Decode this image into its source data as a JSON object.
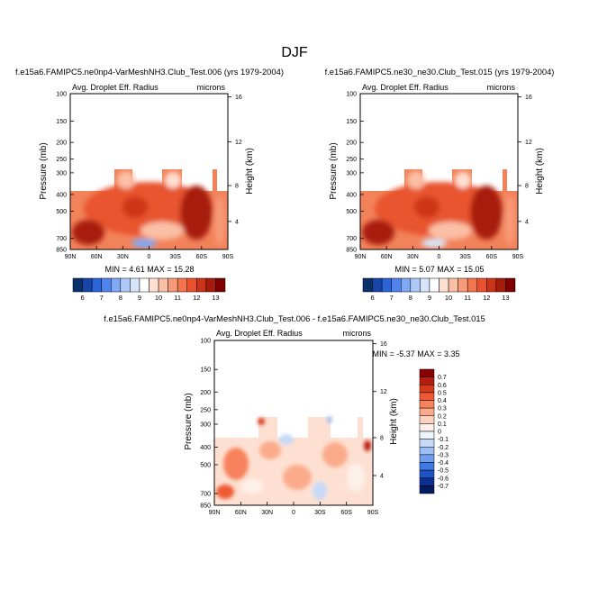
{
  "figure_title": "DJF",
  "chart_data": [
    {
      "type": "heatmap",
      "title": "f.e15a6.FAMIPC5.ne0np4-VarMeshNH3.Club_Test.006 (yrs 1979-2004)",
      "variable": "Avg. Droplet Eff. Radius",
      "units": "microns",
      "ylabel": "Pressure (mb)",
      "y2label": "Height (km)",
      "xticks": [
        "90N",
        "60N",
        "30N",
        "0",
        "30S",
        "60S",
        "90S"
      ],
      "yticks": [
        "100",
        "150",
        "200",
        "250",
        "300",
        "400",
        "500",
        "700",
        "850"
      ],
      "y2ticks": [
        "16",
        "12",
        "8",
        "4"
      ],
      "min_max_text": "MIN =  4.61  MAX =  15.28",
      "colorbar_labels": [
        "6",
        "7",
        "8",
        "9",
        "10",
        "11",
        "12",
        "13"
      ],
      "colorbar_colors": [
        "#08306b",
        "#1746a8",
        "#2b63d9",
        "#4f83ee",
        "#7fa8f5",
        "#aec9f8",
        "#d7e5fb",
        "#ffffff",
        "#fde0d2",
        "#fbbfa5",
        "#f89a78",
        "#f4754d",
        "#e8512f",
        "#cc3418",
        "#a81b0a",
        "#7f0000"
      ]
    },
    {
      "type": "heatmap",
      "title": "f.e15a6.FAMIPC5.ne30_ne30.Club_Test.015 (yrs 1979-2004)",
      "variable": "Avg. Droplet Eff. Radius",
      "units": "microns",
      "ylabel": "Pressure (mb)",
      "y2label": "Height (km)",
      "xticks": [
        "90N",
        "60N",
        "30N",
        "0",
        "30S",
        "60S",
        "90S"
      ],
      "yticks": [
        "100",
        "150",
        "200",
        "250",
        "300",
        "400",
        "500",
        "700",
        "850"
      ],
      "y2ticks": [
        "16",
        "12",
        "8",
        "4"
      ],
      "min_max_text": "MIN =  5.07  MAX =  15.05",
      "colorbar_labels": [
        "6",
        "7",
        "8",
        "9",
        "10",
        "11",
        "12",
        "13"
      ],
      "colorbar_colors": [
        "#08306b",
        "#1746a8",
        "#2b63d9",
        "#4f83ee",
        "#7fa8f5",
        "#aec9f8",
        "#d7e5fb",
        "#ffffff",
        "#fde0d2",
        "#fbbfa5",
        "#f89a78",
        "#f4754d",
        "#e8512f",
        "#cc3418",
        "#a81b0a",
        "#7f0000"
      ]
    },
    {
      "type": "heatmap",
      "title": "f.e15a6.FAMIPC5.ne0np4-VarMeshNH3.Club_Test.006 - f.e15a6.FAMIPC5.ne30_ne30.Club_Test.015",
      "variable": "Avg. Droplet Eff. Radius",
      "units": "microns",
      "ylabel": "Pressure (mb)",
      "y2label": "Height (km)",
      "xticks": [
        "90N",
        "60N",
        "30N",
        "0",
        "30S",
        "60S",
        "90S"
      ],
      "yticks": [
        "100",
        "150",
        "200",
        "250",
        "300",
        "400",
        "500",
        "700",
        "850"
      ],
      "y2ticks": [
        "16",
        "12",
        "8",
        "4"
      ],
      "min_max_text": "MIN = -5.37  MAX =  3.35",
      "colorbar_labels": [
        "0.7",
        "0.6",
        "0.5",
        "0.4",
        "0.3",
        "0.2",
        "0.1",
        "0",
        "-0.1",
        "-0.2",
        "-0.3",
        "-0.4",
        "-0.5",
        "-0.6",
        "-0.7"
      ],
      "colorbar_colors": [
        "#8b0000",
        "#b51d0c",
        "#d63a1c",
        "#ee5a33",
        "#f7825b",
        "#fbab8b",
        "#fdd3bf",
        "#fdf0e9",
        "#eef4fd",
        "#c6daf8",
        "#9dbef3",
        "#6f9eee",
        "#3f7ae2",
        "#1f52c4",
        "#0c2f96",
        "#061a5e"
      ]
    }
  ]
}
